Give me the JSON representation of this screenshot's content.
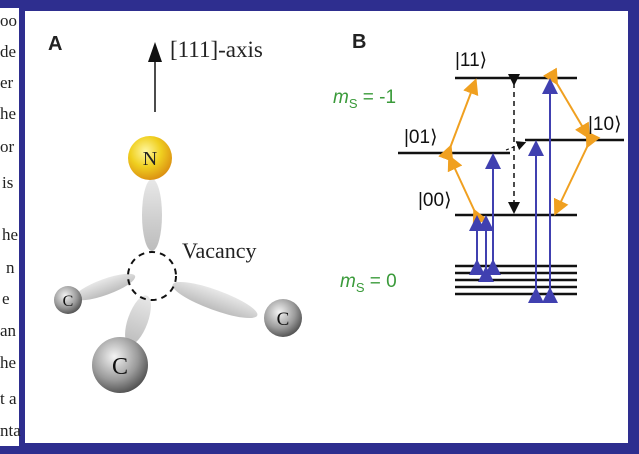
{
  "left_text_fragments": [
    "oo",
    "de",
    "er",
    "he",
    "or",
    "is",
    "he",
    "n",
    "e",
    "an",
    "he",
    "t a",
    "nta"
  ],
  "panel_a": {
    "label": "A",
    "axis_label": "[111]-axis",
    "nitrogen": "N",
    "vacancy": "Vacancy",
    "carbons": [
      "C",
      "C",
      "C"
    ]
  },
  "panel_b": {
    "label": "B",
    "states": {
      "s11": "|11⟩",
      "s01": "|01⟩",
      "s10": "|10⟩",
      "s00": "|00⟩"
    },
    "ms_minus": {
      "symbol": "m",
      "subscript": "S",
      "value": " = -1"
    },
    "ms_zero": {
      "symbol": "m",
      "subscript": "S",
      "value": " = 0"
    }
  }
}
